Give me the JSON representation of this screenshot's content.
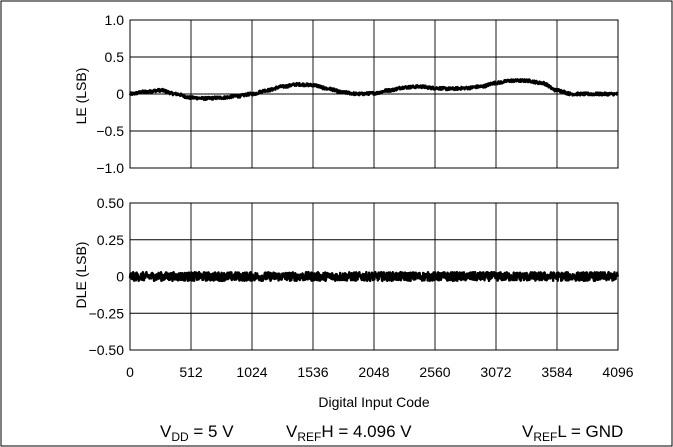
{
  "chart_data": [
    {
      "type": "line",
      "ylabel": "LE (LSB)",
      "xlabel": "",
      "xlim": [
        0,
        4096
      ],
      "ylim": [
        -1.0,
        1.0
      ],
      "x_ticks": [
        0,
        512,
        1024,
        1536,
        2048,
        2560,
        3072,
        3584,
        4096
      ],
      "y_ticks": [
        1.0,
        0.5,
        0,
        -0.5,
        -1.0
      ],
      "y_tick_labels": [
        "1.0",
        "0.5",
        "0",
        "−0.5",
        "−1.0"
      ],
      "grid": true,
      "series": [
        {
          "x": [
            0,
            128,
            256,
            384,
            512,
            640,
            768,
            896,
            1024,
            1152,
            1280,
            1408,
            1536,
            1664,
            1792,
            1920,
            2048,
            2176,
            2304,
            2432,
            2560,
            2688,
            2816,
            2944,
            3072,
            3200,
            3328,
            3456,
            3584,
            3712,
            3840,
            3968,
            4096
          ],
          "values": [
            0.0,
            0.03,
            0.05,
            0.0,
            -0.05,
            -0.06,
            -0.05,
            -0.03,
            0.0,
            0.05,
            0.1,
            0.13,
            0.12,
            0.07,
            0.02,
            0.0,
            0.01,
            0.05,
            0.09,
            0.1,
            0.08,
            0.07,
            0.08,
            0.1,
            0.15,
            0.18,
            0.18,
            0.15,
            0.05,
            0.0,
            0.0,
            0.0,
            0.0
          ],
          "noise": 0.02
        }
      ]
    },
    {
      "type": "line",
      "ylabel": "DLE (LSB)",
      "xlabel": "Digital Input Code",
      "xlim": [
        0,
        4096
      ],
      "ylim": [
        -0.5,
        0.5
      ],
      "x_ticks": [
        0,
        512,
        1024,
        1536,
        2048,
        2560,
        3072,
        3584,
        4096
      ],
      "x_tick_labels": [
        "0",
        "512",
        "1024",
        "1536",
        "2048",
        "2560",
        "3072",
        "3584",
        "4096"
      ],
      "y_ticks": [
        0.5,
        0.25,
        0,
        -0.25,
        -0.5
      ],
      "y_tick_labels": [
        "0.50",
        "0.25",
        "0",
        "−0.25",
        "−0.50"
      ],
      "grid": true,
      "series": [
        {
          "x": [
            0,
            4096
          ],
          "values": [
            0.0,
            0.0
          ],
          "noise": 0.03
        }
      ]
    }
  ],
  "conditions": {
    "vdd": {
      "prefix": "V",
      "sub": "DD",
      "suffix": " = 5 V"
    },
    "vrefh": {
      "prefix": "V",
      "sub": "REF",
      "suffix": "H = 4.096 V"
    },
    "vrefl": {
      "prefix": "V",
      "sub": "REF",
      "suffix": "L = GND"
    }
  }
}
